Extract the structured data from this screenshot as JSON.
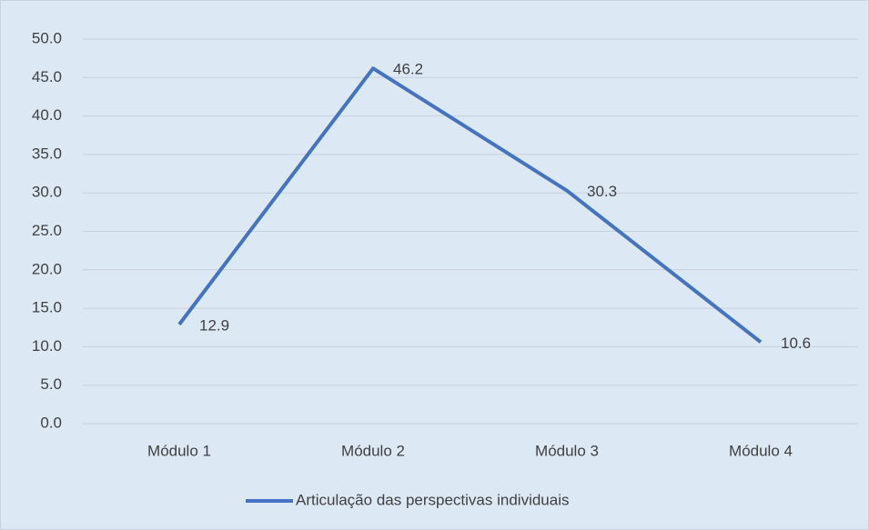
{
  "chart_data": {
    "type": "line",
    "categories": [
      "Módulo  1",
      "Módulo  2",
      "Módulo  3",
      "Módulo  4"
    ],
    "series": [
      {
        "name": "Articulação das perspectivas individuais",
        "color": "#4472c4",
        "values": [
          12.9,
          46.2,
          30.3,
          10.6
        ]
      }
    ],
    "ylim": [
      0,
      50
    ],
    "yticks": [
      {
        "value": 0,
        "label": "0.0"
      },
      {
        "value": 5,
        "label": "5.0"
      },
      {
        "value": 10,
        "label": "10.0"
      },
      {
        "value": 15,
        "label": "15.0"
      },
      {
        "value": 20,
        "label": "20.0"
      },
      {
        "value": 25,
        "label": "25.0"
      },
      {
        "value": 30,
        "label": "30.0"
      },
      {
        "value": 35,
        "label": "35.0"
      },
      {
        "value": 40,
        "label": "40.0"
      },
      {
        "value": 45,
        "label": "45.0"
      },
      {
        "value": 50,
        "label": "50.0"
      }
    ],
    "grid": true,
    "legend": "bottom"
  }
}
